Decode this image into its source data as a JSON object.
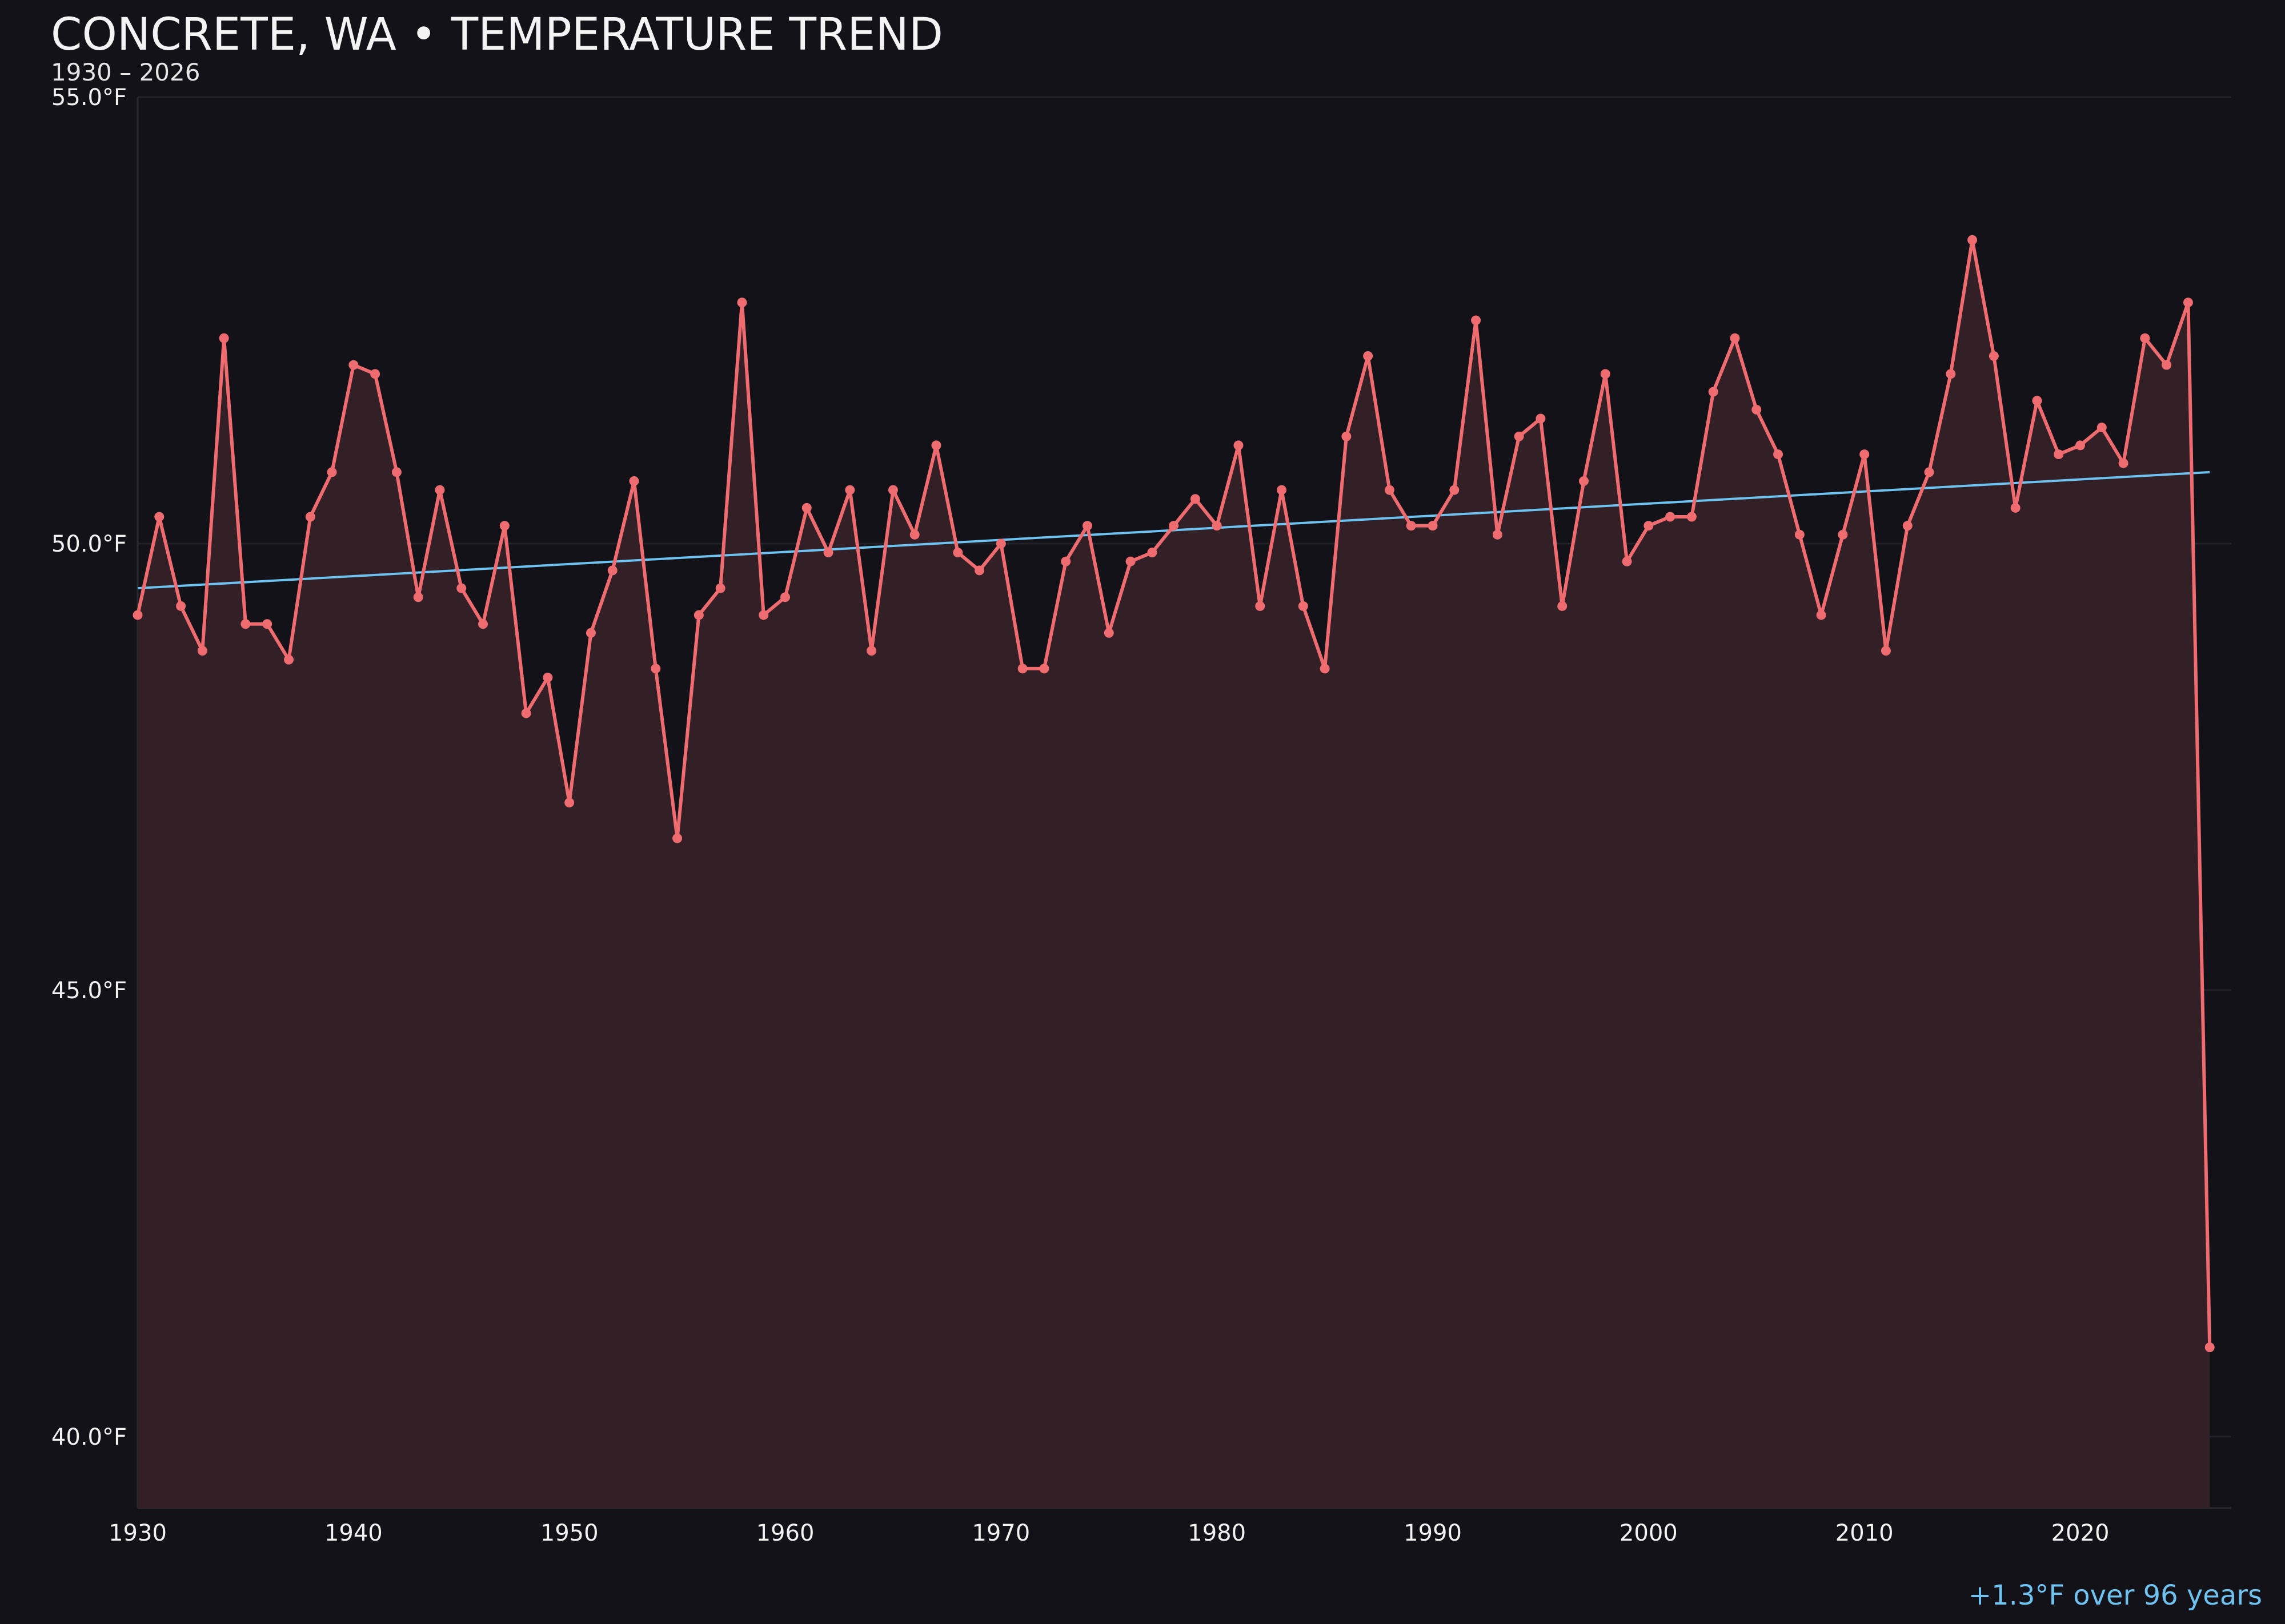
{
  "chart_data": {
    "type": "line",
    "title": "CONCRETE, WA • TEMPERATURE TREND",
    "subtitle": "1930 – 2026",
    "xlabel": "",
    "ylabel": "",
    "xlim": [
      1930,
      2027
    ],
    "ylim": [
      39.2,
      55.0
    ],
    "x_ticks": [
      1930,
      1940,
      1950,
      1960,
      1970,
      1980,
      1990,
      2000,
      2010,
      2020
    ],
    "x_tick_labels": [
      "1930",
      "1940",
      "1950",
      "1960",
      "1970",
      "1980",
      "1990",
      "2000",
      "2010",
      "2020"
    ],
    "y_ticks": [
      55.0,
      50.0,
      45.0,
      40.0
    ],
    "y_tick_labels": [
      "55.0°F",
      "50.0°F",
      "45.0°F",
      "40.0°F"
    ],
    "grid": true,
    "series": [
      {
        "color": "#ee6b6f",
        "fill": "#331f26",
        "x": [
          1930,
          1931,
          1932,
          1933,
          1934,
          1935,
          1936,
          1937,
          1938,
          1939,
          1940,
          1941,
          1942,
          1943,
          1944,
          1945,
          1946,
          1947,
          1948,
          1949,
          1950,
          1951,
          1952,
          1953,
          1954,
          1955,
          1956,
          1957,
          1958,
          1959,
          1960,
          1961,
          1962,
          1963,
          1964,
          1965,
          1966,
          1967,
          1968,
          1969,
          1970,
          1971,
          1972,
          1973,
          1974,
          1975,
          1976,
          1977,
          1978,
          1979,
          1980,
          1981,
          1982,
          1983,
          1984,
          1985,
          1986,
          1987,
          1988,
          1989,
          1990,
          1991,
          1992,
          1993,
          1994,
          1995,
          1996,
          1997,
          1998,
          1999,
          2000,
          2001,
          2002,
          2003,
          2004,
          2005,
          2006,
          2007,
          2008,
          2009,
          2010,
          2011,
          2012,
          2013,
          2014,
          2015,
          2016,
          2017,
          2018,
          2019,
          2020,
          2021,
          2022,
          2023,
          2024,
          2025,
          2026
        ],
        "values": [
          49.2,
          50.3,
          49.3,
          48.8,
          52.3,
          49.1,
          49.1,
          48.7,
          50.3,
          50.8,
          52.0,
          51.9,
          50.8,
          49.4,
          50.6,
          49.5,
          49.1,
          50.2,
          48.1,
          48.5,
          47.1,
          49.0,
          49.7,
          50.7,
          48.6,
          46.7,
          49.2,
          49.5,
          52.7,
          49.2,
          49.4,
          50.4,
          49.9,
          50.6,
          48.8,
          50.6,
          50.1,
          51.1,
          49.9,
          49.7,
          50.0,
          48.6,
          48.6,
          49.8,
          50.2,
          49.0,
          49.8,
          49.9,
          50.2,
          50.5,
          50.2,
          51.1,
          49.3,
          50.6,
          49.3,
          48.6,
          51.2,
          52.1,
          50.6,
          50.2,
          50.2,
          50.6,
          52.5,
          50.1,
          51.2,
          51.4,
          49.3,
          50.7,
          51.9,
          49.8,
          50.2,
          50.3,
          50.3,
          51.7,
          52.3,
          51.5,
          51.0,
          50.1,
          49.2,
          50.1,
          51.0,
          48.8,
          50.2,
          50.8,
          51.9,
          53.4,
          52.1,
          50.4,
          51.6,
          51.0,
          51.1,
          51.3,
          50.9,
          52.3,
          52.0,
          52.7,
          41.0
        ]
      },
      {
        "name": "trend",
        "color": "#6ec3f1",
        "x": [
          1930,
          2026
        ],
        "values": [
          49.5,
          50.8
        ]
      }
    ],
    "annotation": "+1.3°F over 96 years"
  }
}
